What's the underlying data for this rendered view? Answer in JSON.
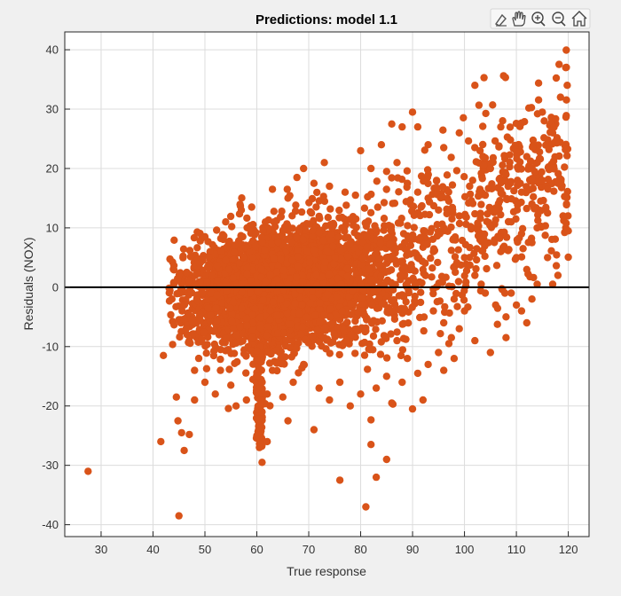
{
  "chart_data": {
    "type": "scatter",
    "title": "Predictions: model 1.1",
    "xlabel": "True response",
    "ylabel": "Residuals (NOX)",
    "xlim": [
      23,
      124
    ],
    "ylim": [
      -42,
      43
    ],
    "xticks": [
      30,
      40,
      50,
      60,
      70,
      80,
      90,
      100,
      110,
      120
    ],
    "yticks": [
      -40,
      -30,
      -20,
      -10,
      0,
      10,
      20,
      30,
      40
    ],
    "grid": true,
    "reference_line_y": 0,
    "marker_color": "#d95319",
    "outliers": [
      [
        27.5,
        -31
      ],
      [
        45,
        -38.5
      ],
      [
        41.5,
        -26
      ],
      [
        42,
        -11.5
      ],
      [
        44.5,
        -18.5
      ],
      [
        44.8,
        -22.5
      ],
      [
        46,
        -27.5
      ],
      [
        45.5,
        -24.5
      ],
      [
        47,
        -24.8
      ],
      [
        61,
        -29.5
      ],
      [
        76,
        -32.5
      ],
      [
        81,
        -37
      ],
      [
        82,
        -26.5
      ],
      [
        83,
        -32
      ],
      [
        85,
        -29
      ],
      [
        102,
        34
      ],
      [
        119.5,
        37
      ],
      [
        119.8,
        34
      ],
      [
        118.5,
        32
      ],
      [
        115,
        29.5
      ],
      [
        117,
        26
      ],
      [
        107,
        27
      ],
      [
        103,
        23
      ],
      [
        99,
        26
      ],
      [
        96,
        23.5
      ],
      [
        93,
        24
      ],
      [
        91,
        27
      ],
      [
        90,
        29.5
      ],
      [
        88,
        27
      ],
      [
        86,
        27.5
      ],
      [
        87,
        21
      ],
      [
        84,
        24
      ],
      [
        73,
        21
      ],
      [
        69,
        20
      ],
      [
        112,
        22
      ],
      [
        114,
        21
      ],
      [
        108,
        19
      ],
      [
        111,
        16
      ],
      [
        113,
        14
      ],
      [
        116,
        12.5
      ],
      [
        119.5,
        10
      ],
      [
        119,
        12
      ],
      [
        120,
        9.5
      ],
      [
        116,
        5
      ],
      [
        118,
        2
      ],
      [
        117,
        0.5
      ],
      [
        114,
        0.5
      ],
      [
        110,
        -3
      ],
      [
        112,
        -6
      ],
      [
        108,
        -8.5
      ],
      [
        105,
        -11
      ],
      [
        98,
        -12
      ],
      [
        96,
        -14
      ],
      [
        92,
        -19
      ],
      [
        90,
        -20.5
      ],
      [
        88,
        -16
      ],
      [
        86,
        -19.5
      ],
      [
        71,
        -24
      ],
      [
        66,
        -22.5
      ],
      [
        62,
        -26
      ],
      [
        60.5,
        -27
      ],
      [
        60,
        -25
      ],
      [
        61,
        -21
      ],
      [
        62,
        -18
      ],
      [
        52,
        -18
      ],
      [
        50,
        -16
      ],
      [
        48,
        -14
      ],
      [
        47,
        -9
      ],
      [
        46,
        -3
      ],
      [
        45,
        -1
      ],
      [
        44,
        0.5
      ],
      [
        46.5,
        2.5
      ],
      [
        49,
        4
      ],
      [
        51,
        6
      ],
      [
        50,
        8.5
      ],
      [
        54,
        11
      ],
      [
        57,
        13
      ],
      [
        59,
        13.5
      ],
      [
        63,
        16.5
      ],
      [
        66,
        15
      ],
      [
        71,
        17.5
      ],
      [
        74,
        17
      ],
      [
        77,
        16
      ],
      [
        79,
        15.5
      ],
      [
        80,
        23
      ],
      [
        82,
        20
      ],
      [
        85,
        19.5
      ],
      [
        89,
        17.5
      ],
      [
        91,
        16
      ],
      [
        93,
        15
      ],
      [
        95,
        13
      ],
      [
        97,
        14.5
      ],
      [
        99,
        12
      ],
      [
        101,
        17
      ],
      [
        104,
        15.5
      ],
      [
        106,
        13
      ],
      [
        109,
        11
      ],
      [
        111,
        9
      ],
      [
        113,
        7.5
      ],
      [
        100,
        5
      ],
      [
        102,
        2
      ],
      [
        104,
        -1
      ],
      [
        106,
        -3
      ],
      [
        108,
        -5
      ],
      [
        99,
        -7
      ],
      [
        97,
        -9.5
      ],
      [
        95,
        -11
      ],
      [
        93,
        -13
      ],
      [
        91,
        -14.5
      ],
      [
        89,
        -12
      ],
      [
        87,
        -9
      ],
      [
        85,
        -15
      ],
      [
        83,
        -17
      ],
      [
        80,
        -18
      ],
      [
        78,
        -20
      ],
      [
        76,
        -16
      ],
      [
        74,
        -19
      ],
      [
        72,
        -17
      ],
      [
        69,
        -13
      ],
      [
        67,
        -16
      ],
      [
        65,
        -18.5
      ],
      [
        63,
        -14
      ],
      [
        58,
        -19
      ],
      [
        55,
        -16.5
      ],
      [
        53,
        -14
      ],
      [
        56,
        -20
      ],
      [
        48,
        -19
      ],
      [
        110,
        5
      ],
      [
        112,
        3
      ],
      [
        114,
        10
      ],
      [
        115,
        18
      ],
      [
        117,
        20
      ],
      [
        105,
        20
      ],
      [
        103,
        8
      ],
      [
        107,
        6
      ],
      [
        109,
        -1
      ],
      [
        111,
        -4
      ],
      [
        113,
        -2
      ],
      [
        98,
        8
      ],
      [
        96,
        10
      ],
      [
        94,
        6
      ],
      [
        92,
        3
      ],
      [
        94,
        -4
      ],
      [
        96,
        -6
      ],
      [
        98,
        -2
      ],
      [
        100,
        -4
      ],
      [
        102,
        -9
      ]
    ]
  }
}
